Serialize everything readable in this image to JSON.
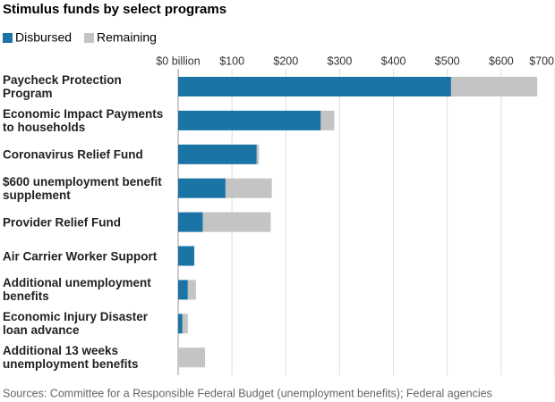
{
  "chart_data": {
    "type": "stacked-bar-horizontal",
    "title": "Stimulus funds by select programs",
    "categories": [
      "Paycheck Protection\nProgram",
      "Economic Impact Payments\nto households",
      "Coronavirus Relief Fund",
      "$600 unemployment benefit\nsupplement",
      "Provider Relief Fund",
      "Air Carrier Worker Support",
      "Additional unemployment\nbenefits",
      "Economic Injury Disaster\nloan advance",
      "Additional 13 weeks\nunemployment benefits"
    ],
    "series": [
      {
        "name": "Disbursed",
        "color": "#1a74a6",
        "values": [
          507,
          265,
          146,
          88,
          46,
          30,
          18,
          8,
          0
        ]
      },
      {
        "name": "Remaining",
        "color": "#c4c4c4",
        "values": [
          160,
          25,
          4,
          86,
          126,
          0,
          15,
          10,
          50
        ]
      }
    ],
    "xlim": [
      0,
      700
    ],
    "xticks": [
      {
        "value": 0,
        "label": "$0 billion"
      },
      {
        "value": 100,
        "label": "$100"
      },
      {
        "value": 200,
        "label": "$200"
      },
      {
        "value": 300,
        "label": "$300"
      },
      {
        "value": 400,
        "label": "$400"
      },
      {
        "value": 500,
        "label": "$500"
      },
      {
        "value": 600,
        "label": "$600"
      },
      {
        "value": 700,
        "label": "$700"
      }
    ],
    "grid": true,
    "source": "Sources: Committee for a Responsible Federal Budget (unemployment benefits); Federal agencies"
  }
}
